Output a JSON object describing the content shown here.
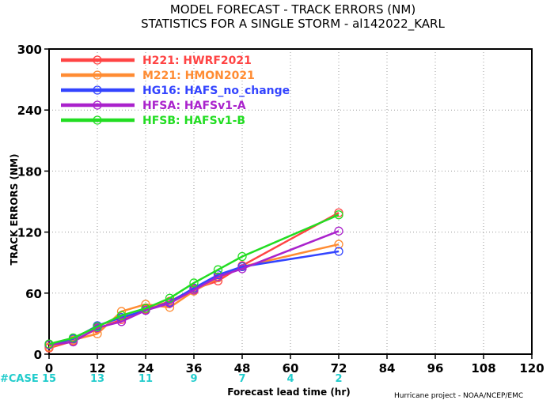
{
  "chart_data": {
    "type": "line",
    "title": "MODEL FORECAST - TRACK ERRORS (NM)",
    "subtitle": "STATISTICS FOR A SINGLE STORM - al142022_KARL",
    "xlabel": "Forecast lead time (hr)",
    "ylabel": "TRACK ERRORS (NM)",
    "xlim": [
      0,
      120
    ],
    "ylim": [
      0,
      300
    ],
    "x_ticks": [
      "0",
      "12",
      "24",
      "36",
      "48",
      "60",
      "72",
      "84",
      "96",
      "108",
      "120"
    ],
    "y_ticks": [
      "0",
      "60",
      "120",
      "180",
      "240",
      "300"
    ],
    "x": [
      0,
      6,
      12,
      18,
      24,
      30,
      36,
      42,
      48,
      72
    ],
    "grid": true,
    "legend_position": "top-left",
    "series": [
      {
        "name": "H221: HWRF2021",
        "color": "#ff4444",
        "values": [
          6,
          13,
          25,
          34,
          44,
          52,
          64,
          72,
          87,
          139
        ]
      },
      {
        "name": "M221: HMON2021",
        "color": "#ff8c33",
        "values": [
          7,
          14,
          20,
          42,
          49,
          46,
          62,
          75,
          86,
          108
        ]
      },
      {
        "name": "HG16: HAFS_no_change",
        "color": "#3344ff",
        "values": [
          9,
          15,
          28,
          36,
          43,
          51,
          65,
          78,
          86,
          101
        ]
      },
      {
        "name": "HFSA: HAFSv1-A",
        "color": "#aa22cc",
        "values": [
          9,
          12,
          26,
          32,
          43,
          50,
          63,
          76,
          84,
          121
        ]
      },
      {
        "name": "HFSB: HAFSv1-B",
        "color": "#22dd22",
        "values": [
          10,
          16,
          27,
          38,
          45,
          55,
          70,
          83,
          96,
          137
        ]
      }
    ],
    "case_label": "#CASE",
    "case_counts": [
      {
        "x": 0,
        "count": "15"
      },
      {
        "x": 12,
        "count": "13"
      },
      {
        "x": 24,
        "count": "11"
      },
      {
        "x": 36,
        "count": "9"
      },
      {
        "x": 48,
        "count": "7"
      },
      {
        "x": 60,
        "count": "4"
      },
      {
        "x": 72,
        "count": "2"
      }
    ]
  },
  "credit": "Hurricane project - NOAA/NCEP/EMC"
}
